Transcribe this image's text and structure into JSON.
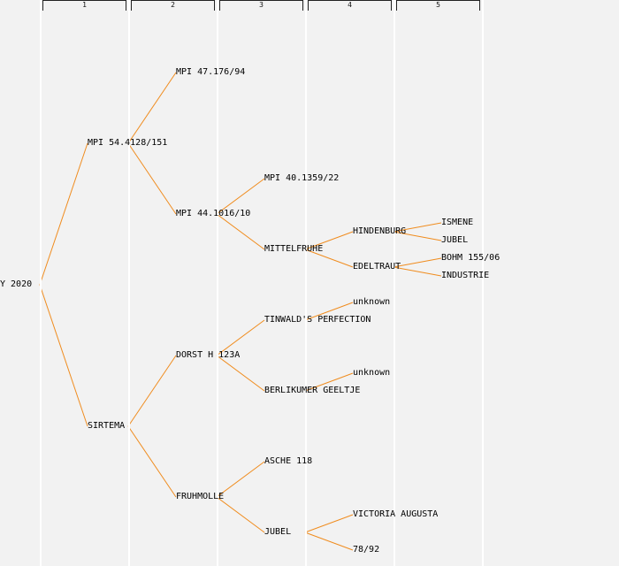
{
  "colors": {
    "background": "#f2f2f2",
    "edge": "#f08c1e",
    "divider": "#ffffff",
    "text": "#000000"
  },
  "generation_labels": [
    "1",
    "2",
    "3",
    "4",
    "5"
  ],
  "tree": {
    "label": "Y 2020",
    "children": [
      {
        "label": "MPI 54.4128/151",
        "children": [
          {
            "label": "MPI 47.176/94",
            "children": []
          },
          {
            "label": "MPI 44.1016/10",
            "children": [
              {
                "label": "MPI 40.1359/22",
                "children": []
              },
              {
                "label": "MITTELFRUHE",
                "children": [
                  {
                    "label": "HINDENBURG",
                    "children": [
                      {
                        "label": "ISMENE",
                        "children": []
                      },
                      {
                        "label": "JUBEL",
                        "children": []
                      }
                    ]
                  },
                  {
                    "label": "EDELTRAUT",
                    "children": [
                      {
                        "label": "BOHM 155/06",
                        "children": []
                      },
                      {
                        "label": "INDUSTRIE",
                        "children": []
                      }
                    ]
                  }
                ]
              }
            ]
          }
        ]
      },
      {
        "label": "SIRTEMA",
        "children": [
          {
            "label": "DORST H 123A",
            "children": [
              {
                "label": "TINWALD'S PERFECTION",
                "children": [
                  {
                    "label": "unknown",
                    "children": []
                  }
                ]
              },
              {
                "label": "BERLIKUMER GEELTJE",
                "children": [
                  {
                    "label": "unknown",
                    "children": []
                  }
                ]
              }
            ]
          },
          {
            "label": "FRUHMOLLE",
            "children": [
              {
                "label": "ASCHE 118",
                "children": []
              },
              {
                "label": "JUBEL",
                "children": [
                  {
                    "label": "VICTORIA AUGUSTA",
                    "children": []
                  },
                  {
                    "label": "78/92",
                    "children": []
                  }
                ]
              }
            ]
          }
        ]
      }
    ]
  }
}
